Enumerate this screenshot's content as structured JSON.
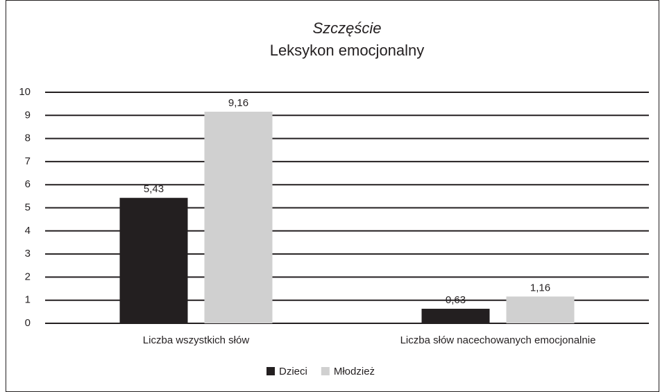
{
  "chart_data": {
    "type": "bar",
    "title": "Szczęście",
    "subtitle": "Leksykon emocjonalny",
    "categories": [
      "Liczba wszystkich słów",
      "Liczba słów nacechowanych emocjonalnie"
    ],
    "series": [
      {
        "name": "Dzieci",
        "color": "#231f20",
        "values": [
          5.43,
          0.63
        ],
        "value_labels": [
          "5,43",
          "0,63"
        ]
      },
      {
        "name": "Młodzież",
        "color": "#d0d0d0",
        "values": [
          9.16,
          1.16
        ],
        "value_labels": [
          "9,16",
          "1,16"
        ]
      }
    ],
    "ylim": [
      0,
      10
    ],
    "yticks": [
      0,
      1,
      2,
      3,
      4,
      5,
      6,
      7,
      8,
      9,
      10
    ],
    "grid": true,
    "legend": "bottom"
  }
}
